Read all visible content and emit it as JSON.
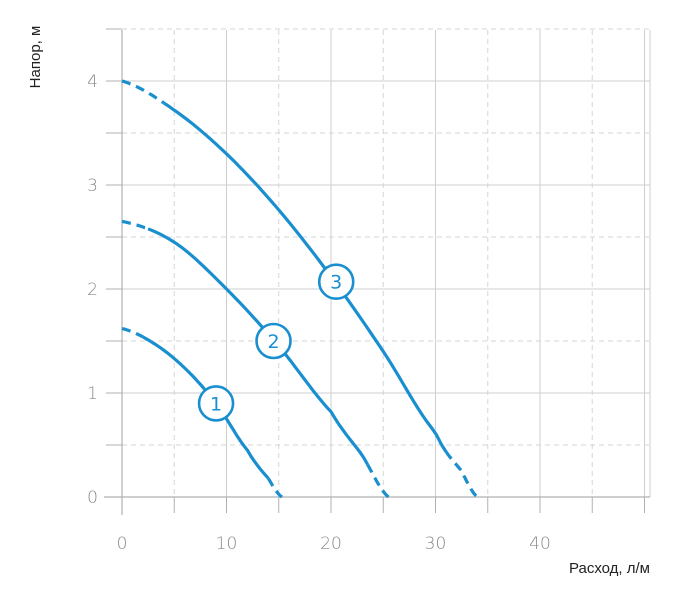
{
  "chart_data": {
    "type": "line",
    "xlabel": "Расход, л/м",
    "ylabel": "Напор, м",
    "xlim": [
      0,
      50
    ],
    "ylim": [
      0,
      4.5
    ],
    "xticks": [
      "0",
      "10",
      "20",
      "30",
      "40"
    ],
    "xtick_values": [
      0,
      10,
      20,
      30,
      40
    ],
    "yticks": [
      "0",
      "1",
      "2",
      "3",
      "4"
    ],
    "ytick_values": [
      0,
      1,
      2,
      3,
      4
    ],
    "grid": true,
    "series": [
      {
        "name": "1",
        "x": [
          0,
          3,
          6,
          9,
          12,
          14,
          15.3
        ],
        "y": [
          1.62,
          1.48,
          1.24,
          0.9,
          0.45,
          0.18,
          0
        ],
        "solid_range": [
          2,
          14
        ],
        "label_at": {
          "x": 9,
          "y": 0.9
        }
      },
      {
        "name": "2",
        "x": [
          0,
          5,
          10,
          15,
          20,
          23,
          25.5
        ],
        "y": [
          2.65,
          2.45,
          2.0,
          1.45,
          0.82,
          0.4,
          0
        ],
        "solid_range": [
          2.5,
          23.5
        ],
        "label_at": {
          "x": 14.5,
          "y": 1.5
        }
      },
      {
        "name": "3",
        "x": [
          0,
          5,
          10,
          15,
          20,
          25,
          30,
          32.5,
          34
        ],
        "y": [
          4.0,
          3.72,
          3.3,
          2.76,
          2.12,
          1.4,
          0.62,
          0.25,
          0
        ],
        "solid_range": [
          4,
          31
        ],
        "label_at": {
          "x": 20.5,
          "y": 2.07
        }
      }
    ],
    "line_color": "#1a8fcf"
  }
}
